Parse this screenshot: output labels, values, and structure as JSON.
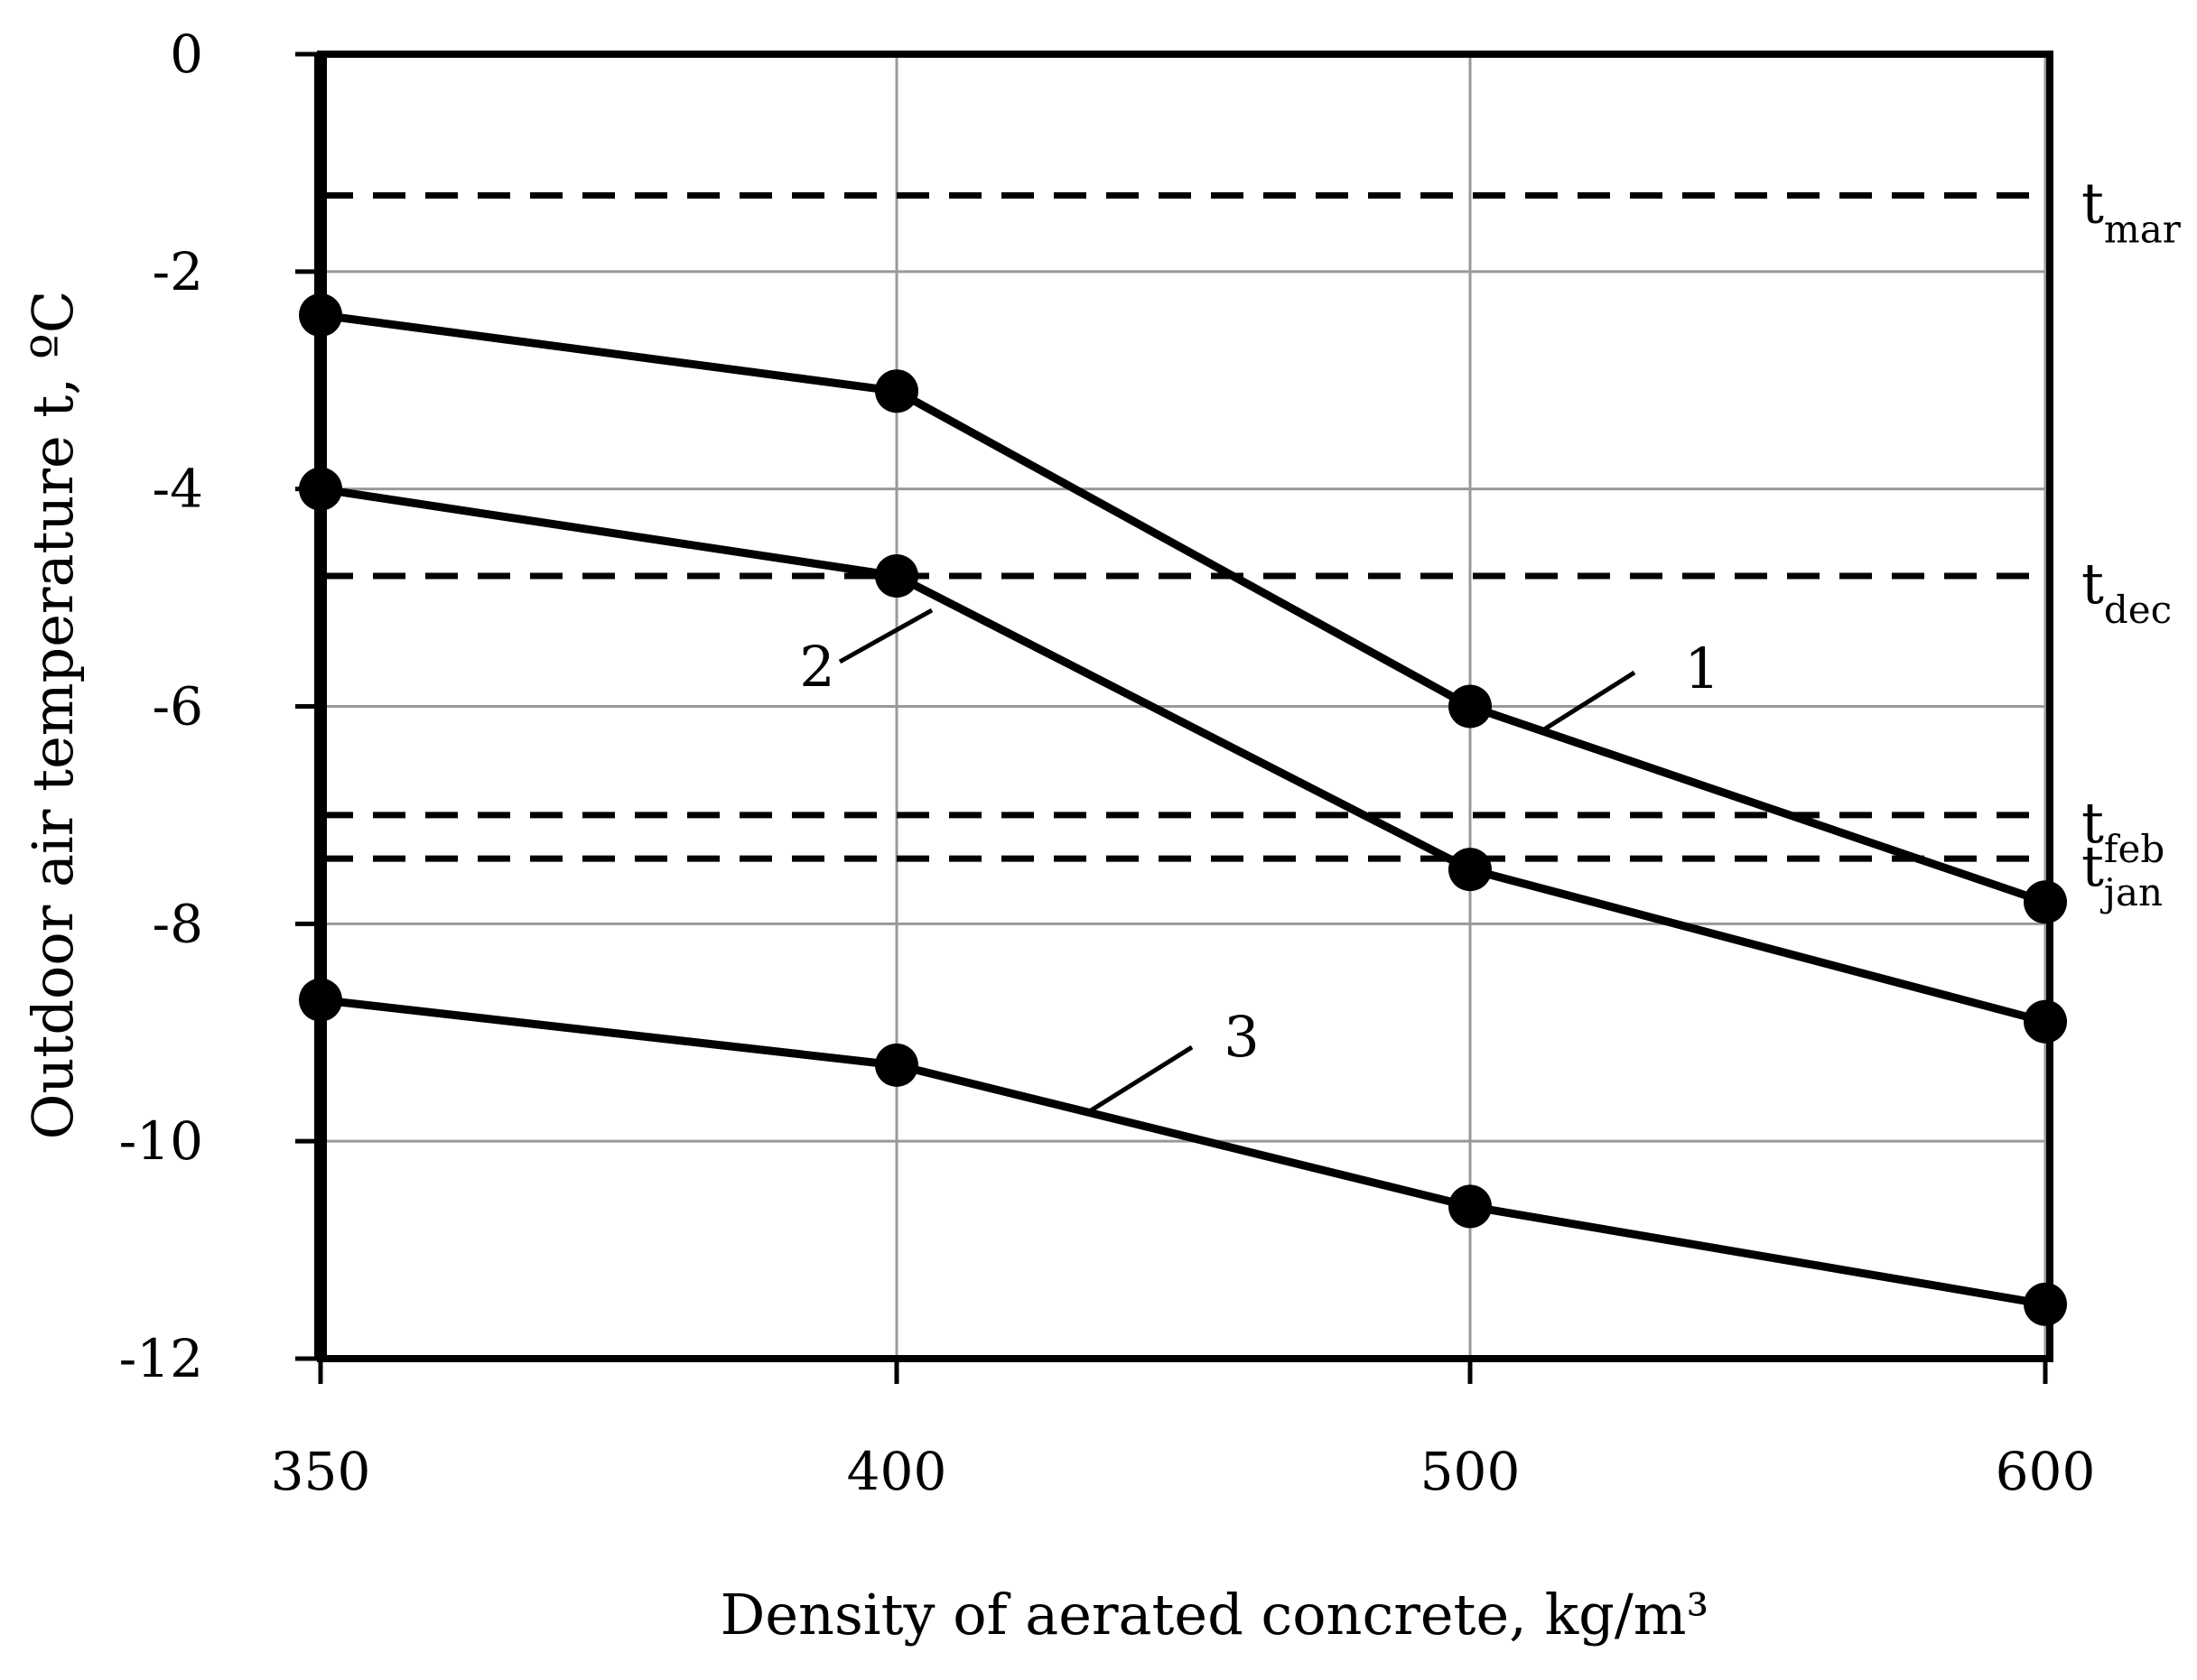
{
  "chart_data": {
    "type": "line",
    "title": "",
    "xlabel": "Density of aerated concrete, kg/m³",
    "ylabel": "Outdoor air temperature t, ºC",
    "x_categories": [
      "350",
      "400",
      "500",
      "600"
    ],
    "ylim": [
      -12,
      0
    ],
    "yticks": [
      0,
      -2,
      -4,
      -6,
      -8,
      -10,
      -12
    ],
    "ytick_labels": [
      "0",
      "-2",
      "-4",
      "-6",
      "-8",
      "-10",
      "-12"
    ],
    "grid": true,
    "series": [
      {
        "label": "1",
        "values": [
          -2.4,
          -3.1,
          -6.0,
          -7.8
        ]
      },
      {
        "label": "2",
        "values": [
          -4.0,
          -4.8,
          -7.5,
          -8.9
        ]
      },
      {
        "label": "3",
        "values": [
          -8.7,
          -9.3,
          -10.6,
          -11.5
        ]
      }
    ],
    "reference_lines": [
      {
        "base": "t",
        "sub": "mar",
        "value": -1.3
      },
      {
        "base": "t",
        "sub": "dec",
        "value": -4.8
      },
      {
        "base": "t",
        "sub": "feb",
        "value": -7.0
      },
      {
        "base": "t",
        "sub": "jan",
        "value": -7.4
      }
    ],
    "colors": {
      "line": "#000000",
      "grid": "#999999"
    }
  }
}
